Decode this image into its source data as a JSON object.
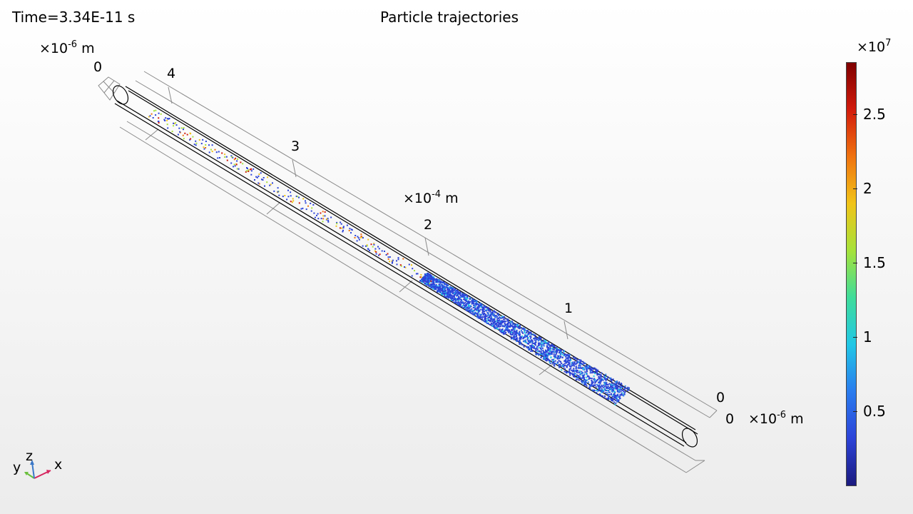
{
  "header": {
    "time_label": "Time=3.34E-11 s",
    "title": "Particle trajectories"
  },
  "axes": {
    "y_scale_label": "×10",
    "y_scale_exp": "-6",
    "y_scale_unit": " m",
    "y_tick_top": "0",
    "x_scale_label": "×10",
    "x_scale_exp": "-4",
    "x_scale_unit": " m",
    "x_ticks": [
      "4",
      "3",
      "2",
      "1",
      "0"
    ],
    "z_scale_label": "×10",
    "z_scale_exp": "-6",
    "z_scale_unit": " m",
    "z_tick": "0"
  },
  "colorbar": {
    "multiplier_label": "×10",
    "multiplier_exp": "7",
    "ticks": [
      "2.5",
      "2",
      "1.5",
      "1",
      "0.5"
    ],
    "colors": [
      "#7f0000",
      "#d21b0c",
      "#f0730f",
      "#f1c418",
      "#a6e23a",
      "#3fdc9a",
      "#21c7e6",
      "#2a7cee",
      "#2c43d8",
      "#1b1a7e"
    ]
  },
  "triad": {
    "x": "x",
    "y": "y",
    "z": "z",
    "x_color": "#d6255e",
    "y_color": "#6abf3c",
    "z_color": "#3a78c8"
  }
}
